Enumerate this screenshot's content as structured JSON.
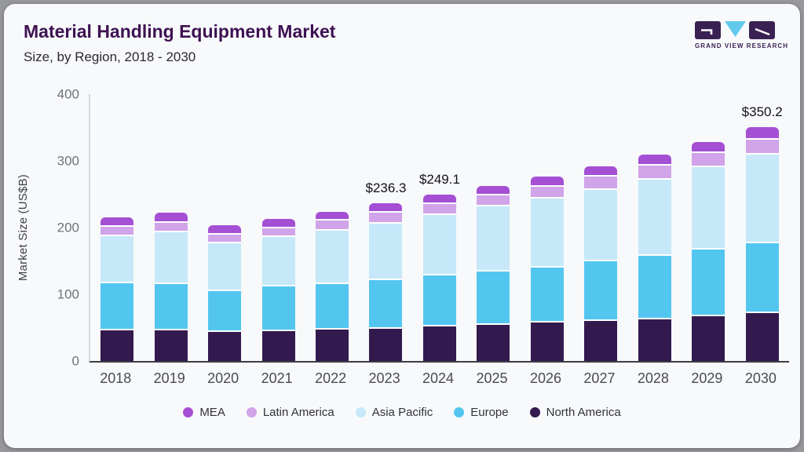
{
  "header": {
    "title": "Material Handling Equipment Market",
    "subtitle": "Size, by Region, 2018 - 2030"
  },
  "logo": {
    "text": "GRAND VIEW RESEARCH"
  },
  "colors": {
    "frame_bg": "#98999d",
    "card_bg": "#f7f9fb",
    "title": "#3e1153",
    "subtitle": "#2b2833",
    "axis_line": "#d6d9dd",
    "baseline": "#3d3d44",
    "tick_label": "#71717a",
    "x_label": "#4a4a52",
    "legend_text": "#32323c",
    "annotation": "#121217",
    "separator_white": "#ffffff",
    "logo_purple": "#3a2153",
    "logo_blue": "#62c9ec"
  },
  "chart_data": {
    "type": "bar",
    "stacked": true,
    "title": "Material Handling Equipment Market Size, by Region, 2018 - 2030",
    "ylabel": "Market Size (US$B)",
    "ylim": [
      0,
      400
    ],
    "yticks": [
      0,
      100,
      200,
      300,
      400
    ],
    "grid": false,
    "legend_position": "bottom",
    "categories": [
      "2018",
      "2019",
      "2020",
      "2021",
      "2022",
      "2023",
      "2024",
      "2025",
      "2026",
      "2027",
      "2028",
      "2029",
      "2030"
    ],
    "series": [
      {
        "name": "North America",
        "color": "#321a4e",
        "values": [
          48,
          48,
          46,
          47,
          49.5,
          51,
          54.3,
          56.3,
          60.2,
          62.1,
          65.2,
          69.9,
          74.5
        ]
      },
      {
        "name": "Europe",
        "color": "#53c6f0",
        "values": [
          71,
          70,
          61,
          67,
          68.5,
          72.5,
          76.5,
          80.5,
          82.7,
          89.3,
          94.6,
          99.8,
          104.1
        ]
      },
      {
        "name": "Asia Pacific",
        "color": "#c6e8f9",
        "values": [
          70,
          77,
          72,
          74,
          79.5,
          84.8,
          90.6,
          97.0,
          103.6,
          108.0,
          114.6,
          122.7,
          132.8
        ]
      },
      {
        "name": "Latin America",
        "color": "#d1a3e9",
        "values": [
          15,
          14.5,
          12.5,
          13,
          15.5,
          16.5,
          16.7,
          16.5,
          17.5,
          19.3,
          21.3,
          21.3,
          23.3
        ]
      },
      {
        "name": "MEA",
        "color": "#a44fd4",
        "values": [
          11,
          12.5,
          11.5,
          12,
          11,
          11.5,
          11.0,
          11.8,
          12.4,
          13.3,
          13.7,
          14.1,
          15.5
        ]
      }
    ],
    "totals": [
      215,
      222,
      203,
      213,
      224,
      236.3,
      249.1,
      262.1,
      276.4,
      292.0,
      309.4,
      327.8,
      350.2
    ],
    "annotations": [
      {
        "category": "2023",
        "text": "$236.3"
      },
      {
        "category": "2024",
        "text": "$249.1"
      },
      {
        "category": "2030",
        "text": "$350.2"
      }
    ],
    "legend_order": [
      "MEA",
      "Latin America",
      "Asia Pacific",
      "Europe",
      "North America"
    ]
  }
}
